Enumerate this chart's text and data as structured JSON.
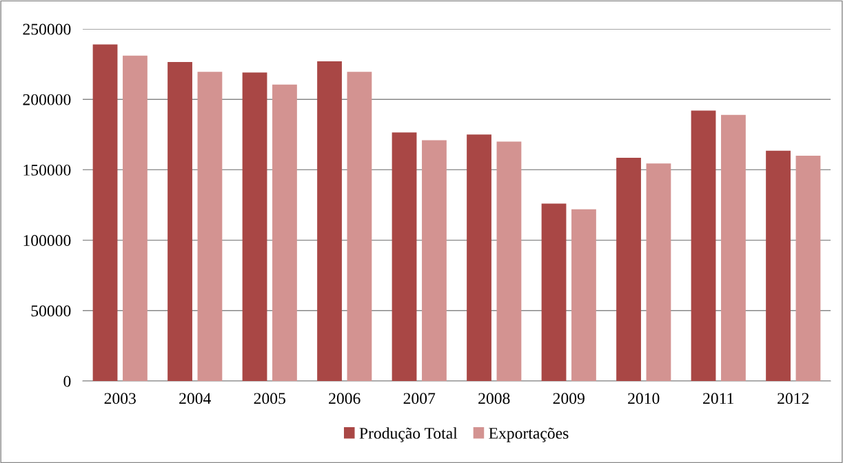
{
  "chart_data": {
    "type": "bar",
    "categories": [
      "2003",
      "2004",
      "2005",
      "2006",
      "2007",
      "2008",
      "2009",
      "2010",
      "2011",
      "2012"
    ],
    "series": [
      {
        "name": "Produção Total",
        "color": "#a94745",
        "values": [
          239000,
          226500,
          219000,
          227000,
          176500,
          175000,
          126000,
          158500,
          192000,
          163500
        ]
      },
      {
        "name": "Exportações",
        "color": "#d39391",
        "values": [
          231000,
          219500,
          210500,
          219500,
          171000,
          170000,
          122000,
          154500,
          189000,
          160000
        ]
      }
    ],
    "ylim": [
      0,
      250000
    ],
    "yticks": [
      0,
      50000,
      100000,
      150000,
      200000,
      250000
    ],
    "grid": "y",
    "legend": "bottom"
  }
}
